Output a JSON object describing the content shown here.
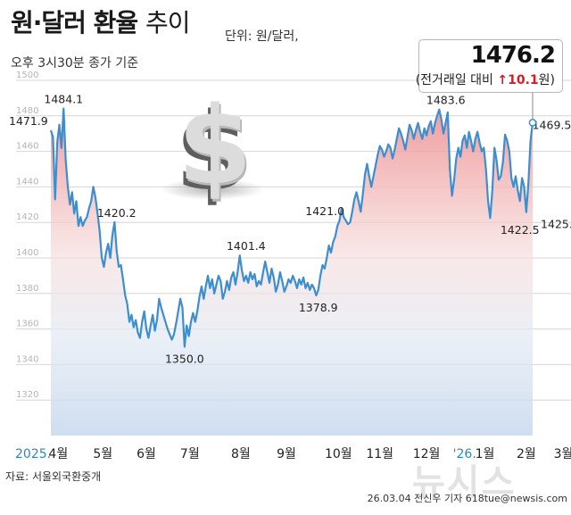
{
  "header": {
    "title_bold": "원·달러 환율",
    "title_thin": "추이",
    "unit": "단위: 원/달러,",
    "subtitle": "오후 3시30분 종가 기준"
  },
  "current": {
    "value": "1476.2",
    "change_prefix": "(전거래일 대비 ",
    "change_arrow": "↑",
    "change_value": "10.1",
    "change_suffix": "원)"
  },
  "footer": {
    "source": "자료: 서울외국환중개",
    "credit": "26.03.04 전신우 기자 618tue@newsis.com",
    "watermark": "뉴시스"
  },
  "icon": "dollar-sign-icon",
  "colors": {
    "line": "#3b8fd0",
    "fill_top": "#ee8a8a",
    "fill_bottom": "#c6d8ee",
    "accent_red": "#e1191e",
    "year_label": "#2f86c6"
  },
  "chart_data": {
    "type": "line",
    "title": "원·달러 환율 추이",
    "ylim": [
      1300,
      1500
    ],
    "yticks": [
      1320,
      1340,
      1360,
      1380,
      1400,
      1420,
      1440,
      1460,
      1480,
      1500
    ],
    "grid": true,
    "x_labels": [
      {
        "text": "2025.",
        "style": "year",
        "x": 0.0
      },
      {
        "text": "4월",
        "style": "month",
        "x": 3.5
      },
      {
        "text": "5월",
        "style": "month",
        "x": 24.5
      },
      {
        "text": "6월",
        "style": "month",
        "x": 45.0
      },
      {
        "text": "7월",
        "style": "month",
        "x": 65.5
      },
      {
        "text": "8월",
        "style": "month",
        "x": 89.5
      },
      {
        "text": "9월",
        "style": "month",
        "x": 111.0
      },
      {
        "text": "10월",
        "style": "month",
        "x": 135.5
      },
      {
        "text": "11월",
        "style": "month",
        "x": 155.0
      },
      {
        "text": "12월",
        "style": "month",
        "x": 177.0
      },
      {
        "text": "'26.",
        "style": "year",
        "x": 194.5
      },
      {
        "text": "1월",
        "style": "month",
        "x": 204.5
      },
      {
        "text": "2월",
        "style": "month",
        "x": 224.0
      },
      {
        "text": "3월",
        "style": "month",
        "x": 241.5
      }
    ],
    "annotations": [
      {
        "text": "1471.9",
        "x": 0,
        "y": 1471.9,
        "anchor": "below-left"
      },
      {
        "text": "1484.1",
        "x": 6,
        "y": 1484.1,
        "anchor": "above"
      },
      {
        "text": "1420.2",
        "x": 31,
        "y": 1420.2,
        "anchor": "above"
      },
      {
        "text": "1350.0",
        "x": 63,
        "y": 1350.0,
        "anchor": "below"
      },
      {
        "text": "1401.4",
        "x": 92,
        "y": 1401.4,
        "anchor": "above"
      },
      {
        "text": "1378.9",
        "x": 126,
        "y": 1378.9,
        "anchor": "below"
      },
      {
        "text": "1421.0",
        "x": 140,
        "y": 1421.0,
        "anchor": "above-left"
      },
      {
        "text": "1483.6",
        "x": 197,
        "y": 1483.6,
        "anchor": "above-left"
      },
      {
        "text": "1469.5",
        "x": 226,
        "y": 1469.5,
        "anchor": "above-right"
      },
      {
        "text": "1422.5",
        "x": 221,
        "y": 1422.5,
        "anchor": "below"
      },
      {
        "text": "1425.8",
        "x": 240,
        "y": 1425.8,
        "anchor": "below"
      }
    ],
    "series": [
      {
        "values": [
          1471.9,
          1468.0,
          1433.0,
          1465.0,
          1475.0,
          1462.0,
          1484.1,
          1455.0,
          1440.0,
          1430.0,
          1437.0,
          1425.0,
          1432.0,
          1418.0,
          1423.0,
          1418.0,
          1421.0,
          1423.0,
          1428.0,
          1432.0,
          1440.0,
          1434.0,
          1425.0,
          1415.0,
          1400.0,
          1395.0,
          1403.0,
          1408.0,
          1400.0,
          1413.0,
          1420.2,
          1404.0,
          1395.0,
          1396.0,
          1388.0,
          1379.0,
          1374.0,
          1364.0,
          1368.0,
          1361.0,
          1365.0,
          1358.0,
          1355.0,
          1364.0,
          1370.0,
          1360.0,
          1355.0,
          1362.0,
          1368.0,
          1359.0,
          1365.0,
          1377.0,
          1372.0,
          1368.0,
          1364.0,
          1360.0,
          1357.0,
          1354.0,
          1357.0,
          1363.0,
          1370.0,
          1377.0,
          1372.0,
          1350.0,
          1362.0,
          1356.0,
          1364.0,
          1369.0,
          1364.0,
          1370.0,
          1378.0,
          1384.0,
          1377.0,
          1384.0,
          1390.0,
          1383.0,
          1388.0,
          1380.0,
          1385.0,
          1390.0,
          1387.0,
          1377.0,
          1381.0,
          1387.0,
          1382.0,
          1389.0,
          1392.0,
          1385.0,
          1392.0,
          1401.4,
          1393.0,
          1387.0,
          1390.0,
          1386.0,
          1392.0,
          1388.0,
          1391.0,
          1384.0,
          1387.0,
          1385.0,
          1392.0,
          1398.0,
          1392.0,
          1386.0,
          1394.0,
          1389.0,
          1381.0,
          1385.0,
          1392.0,
          1387.0,
          1381.0,
          1384.0,
          1388.0,
          1386.0,
          1390.0,
          1387.0,
          1383.0,
          1388.0,
          1385.0,
          1389.0,
          1383.0,
          1386.0,
          1382.0,
          1385.0,
          1383.0,
          1378.9,
          1382.0,
          1390.0,
          1396.0,
          1394.0,
          1400.0,
          1407.0,
          1403.0,
          1409.0,
          1412.0,
          1418.0,
          1421.0,
          1428.0,
          1423.0,
          1421.0,
          1419.0,
          1420.0,
          1426.0,
          1433.0,
          1437.0,
          1432.0,
          1426.0,
          1436.0,
          1447.0,
          1453.0,
          1446.0,
          1440.0,
          1446.0,
          1452.0,
          1458.0,
          1463.0,
          1461.0,
          1457.0,
          1460.0,
          1464.0,
          1462.0,
          1456.0,
          1461.0,
          1467.0,
          1473.0,
          1470.0,
          1466.0,
          1461.0,
          1468.0,
          1475.0,
          1472.0,
          1467.0,
          1472.0,
          1476.0,
          1471.0,
          1467.0,
          1473.0,
          1469.0,
          1474.0,
          1477.0,
          1470.0,
          1476.0,
          1480.0,
          1483.6,
          1478.0,
          1470.0,
          1476.0,
          1482.0,
          1450.0,
          1435.0,
          1444.0,
          1456.0,
          1462.0,
          1457.0,
          1466.0,
          1469.0,
          1462.0,
          1471.0,
          1466.0,
          1460.0,
          1467.0,
          1471.0,
          1465.0,
          1460.0,
          1462.0,
          1450.0,
          1432.0,
          1422.5,
          1438.0,
          1462.0,
          1455.0,
          1444.0,
          1446.0,
          1454.0,
          1469.5,
          1466.0,
          1460.0,
          1445.0,
          1440.0,
          1446.0,
          1438.0,
          1432.0,
          1445.0,
          1440.0,
          1425.8,
          1442.0,
          1466.1,
          1476.2
        ]
      }
    ]
  }
}
